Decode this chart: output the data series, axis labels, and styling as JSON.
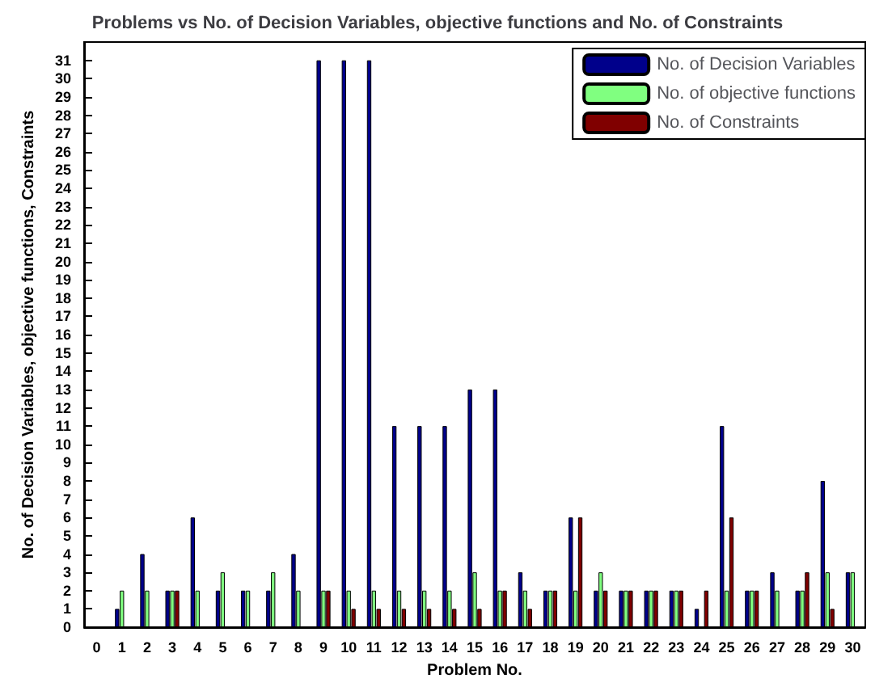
{
  "chart_data": {
    "type": "bar",
    "title": "Problems vs No. of Decision Variables, objective functions and No. of Constraints",
    "xlabel": "Problem No.",
    "ylabel": "No. of Decision Variables, objective functions, Constraints",
    "categories": [
      "0",
      "1",
      "2",
      "3",
      "4",
      "5",
      "6",
      "7",
      "8",
      "9",
      "10",
      "11",
      "12",
      "13",
      "14",
      "15",
      "16",
      "17",
      "18",
      "19",
      "20",
      "21",
      "22",
      "23",
      "24",
      "25",
      "26",
      "27",
      "28",
      "29",
      "30"
    ],
    "series": [
      {
        "name": "No. of Decision Variables",
        "color": "#00008b",
        "values": [
          null,
          1,
          4,
          2,
          6,
          2,
          2,
          2,
          4,
          31,
          31,
          31,
          11,
          11,
          11,
          13,
          13,
          3,
          2,
          6,
          2,
          2,
          2,
          2,
          1,
          11,
          2,
          3,
          2,
          8,
          3
        ]
      },
      {
        "name": "No. of objective functions",
        "color": "#80ff80",
        "values": [
          null,
          2,
          2,
          2,
          2,
          3,
          2,
          3,
          2,
          2,
          2,
          2,
          2,
          2,
          2,
          3,
          2,
          2,
          2,
          2,
          3,
          2,
          2,
          2,
          0,
          2,
          2,
          2,
          2,
          3,
          3
        ]
      },
      {
        "name": "No. of Constraints",
        "color": "#800000",
        "values": [
          null,
          0,
          0,
          2,
          0,
          0,
          0,
          0,
          0,
          2,
          1,
          1,
          1,
          1,
          1,
          1,
          2,
          1,
          2,
          6,
          2,
          2,
          2,
          2,
          2,
          6,
          2,
          0,
          3,
          1,
          0
        ]
      }
    ],
    "ylim": [
      0,
      32
    ],
    "yticks": [
      0,
      1,
      2,
      3,
      4,
      5,
      6,
      7,
      8,
      9,
      10,
      11,
      12,
      13,
      14,
      15,
      16,
      17,
      18,
      19,
      20,
      21,
      22,
      23,
      24,
      25,
      26,
      27,
      28,
      29,
      30,
      31
    ],
    "grid": false,
    "legend": "top right"
  }
}
